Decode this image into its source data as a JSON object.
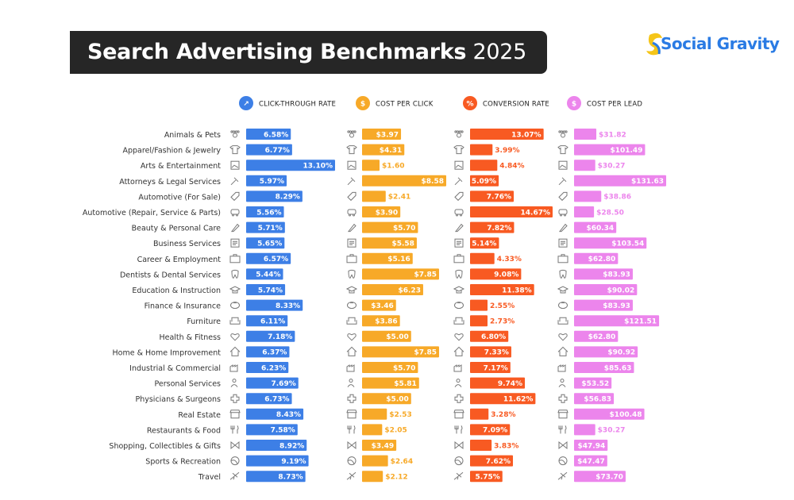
{
  "title": {
    "bold": "Search Advertising Benchmarks",
    "year": "2025"
  },
  "brand": {
    "name": "Social Gravity",
    "color": "#2a7be4",
    "accent": "#f5c518"
  },
  "chart_data": {
    "type": "bar",
    "title": "Search Advertising Benchmarks 2025",
    "categories": [
      "Animals & Pets",
      "Apparel/Fashion & Jewelry",
      "Arts & Entertainment",
      "Attorneys & Legal Services",
      "Automotive (For Sale)",
      "Automotive (Repair, Service & Parts)",
      "Beauty & Personal Care",
      "Business Services",
      "Career & Employment",
      "Dentists & Dental Services",
      "Education & Instruction",
      "Finance & Insurance",
      "Furniture",
      "Health & Fitness",
      "Home & Home Improvement",
      "Industrial & Commercial",
      "Personal Services",
      "Physicians & Surgeons",
      "Real Estate",
      "Restaurants & Food",
      "Shopping, Collectibles & Gifts",
      "Sports & Recreation",
      "Travel"
    ],
    "icons": [
      "paw-icon",
      "shirt-icon",
      "picture-icon",
      "gavel-icon",
      "price-tag-icon",
      "car-icon",
      "brush-icon",
      "document-icon",
      "briefcase-icon",
      "tooth-icon",
      "graduation-cap-icon",
      "piggy-bank-icon",
      "sofa-icon",
      "heart-icon",
      "house-icon",
      "factory-icon",
      "person-icon",
      "medical-cross-icon",
      "storefront-icon",
      "fork-knife-icon",
      "gift-bow-icon",
      "ball-icon",
      "airplane-icon"
    ],
    "series": [
      {
        "name": "CLICK-THROUGH RATE",
        "color": "#3d7fe6",
        "icon": "cursor-icon",
        "labels": [
          "6.58%",
          "6.77%",
          "13.10%",
          "5.97%",
          "8.29%",
          "5.56%",
          "5.71%",
          "5.65%",
          "6.57%",
          "5.44%",
          "5.74%",
          "8.33%",
          "6.11%",
          "7.18%",
          "6.37%",
          "6.23%",
          "7.69%",
          "6.73%",
          "8.43%",
          "7.58%",
          "8.92%",
          "9.19%",
          "8.73%"
        ],
        "values": [
          6.58,
          6.77,
          13.1,
          5.97,
          8.29,
          5.56,
          5.71,
          5.65,
          6.57,
          5.44,
          5.74,
          8.33,
          6.11,
          7.18,
          6.37,
          6.23,
          7.69,
          6.73,
          8.43,
          7.58,
          8.92,
          9.19,
          8.73
        ]
      },
      {
        "name": "COST PER CLICK",
        "color": "#f7a928",
        "icon": "dollar-cursor-icon",
        "labels": [
          "$3.97",
          "$4.31",
          "$1.60",
          "$8.58",
          "$2.41",
          "$3.90",
          "$5.70",
          "$5.58",
          "$5.16",
          "$7.85",
          "$6.23",
          "$3.46",
          "$3.86",
          "$5.00",
          "$7.85",
          "$5.70",
          "$5.81",
          "$5.00",
          "$2.53",
          "$2.05",
          "$3.49",
          "$2.64",
          "$2.12"
        ],
        "values": [
          3.97,
          4.31,
          1.6,
          8.58,
          2.41,
          3.9,
          5.7,
          5.58,
          5.16,
          7.85,
          6.23,
          3.46,
          3.86,
          5.0,
          7.85,
          5.7,
          5.81,
          5.0,
          2.53,
          2.05,
          3.49,
          2.64,
          2.12
        ]
      },
      {
        "name": "CONVERSION RATE",
        "color": "#f85a22",
        "icon": "percent-icon",
        "labels": [
          "13.07%",
          "3.99%",
          "4.84%",
          "5.09%",
          "7.76%",
          "14.67%",
          "7.82%",
          "5.14%",
          "4.33%",
          "9.08%",
          "11.38%",
          "2.55%",
          "2.73%",
          "6.80%",
          "7.33%",
          "7.17%",
          "9.74%",
          "11.62%",
          "3.28%",
          "7.09%",
          "3.83%",
          "7.62%",
          "5.75%"
        ],
        "values": [
          13.07,
          3.99,
          4.84,
          5.09,
          7.76,
          14.67,
          7.82,
          5.14,
          4.33,
          9.08,
          11.38,
          2.55,
          2.73,
          6.8,
          7.33,
          7.17,
          9.74,
          11.62,
          3.28,
          7.09,
          3.83,
          7.62,
          5.75
        ]
      },
      {
        "name": "COST PER LEAD",
        "color": "#ec85ec",
        "icon": "dollar-person-icon",
        "labels": [
          "$31.82",
          "$101.49",
          "$30.27",
          "$131.63",
          "$38.86",
          "$28.50",
          "$60.34",
          "$103.54",
          "$62.80",
          "$83.93",
          "$90.02",
          "$83.93",
          "$121.51",
          "$62.80",
          "$90.92",
          "$85.63",
          "$53.52",
          "$56.83",
          "$100.48",
          "$30.27",
          "$47.94",
          "$47.47",
          "$73.70"
        ],
        "values": [
          31.82,
          101.49,
          30.27,
          131.63,
          38.86,
          28.5,
          60.34,
          103.54,
          62.8,
          83.93,
          90.02,
          83.93,
          121.51,
          62.8,
          90.92,
          85.63,
          53.52,
          56.83,
          100.48,
          30.27,
          47.94,
          47.47,
          73.7
        ]
      }
    ]
  }
}
